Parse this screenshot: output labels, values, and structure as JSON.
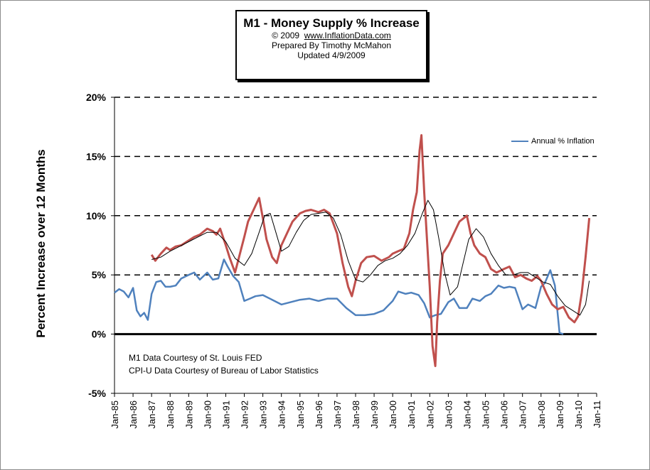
{
  "title_box": {
    "title": "M1 - Money Supply % Increase",
    "copyright": "© 2009",
    "site": "www.InflationData.com",
    "author": "Prepared By Timothy McMahon",
    "updated": "Updated 4/9/2009"
  },
  "credits": {
    "line1": "M1 Data Courtesy of  St. Louis FED",
    "line2": "CPI-U Data Courtesy of   Bureau of Labor Statistics"
  },
  "chart_data": {
    "type": "line",
    "ylabel": "Percent Increase over 12 Months",
    "ylim": [
      -5,
      20
    ],
    "yticks": [
      -5,
      0,
      5,
      10,
      15,
      20
    ],
    "ytick_labels": [
      "-5%",
      "0%",
      "5%",
      "10%",
      "15%",
      "20%"
    ],
    "xlim": [
      1985.0,
      2011.0
    ],
    "xtick_labels": [
      "Jan-85",
      "Jan-86",
      "Jan-87",
      "Jan-88",
      "Jan-89",
      "Jan-90",
      "Jan-91",
      "Jan-92",
      "Jan-93",
      "Jan-94",
      "Jan-95",
      "Jan-96",
      "Jan-97",
      "Jan-98",
      "Jan-99",
      "Jan-00",
      "Jan-01",
      "Jan-02",
      "Jan-03",
      "Jan-04",
      "Jan-05",
      "Jan-06",
      "Jan-07",
      "Jan-08",
      "Jan-09",
      "Jan-10",
      "Jan-11"
    ],
    "grid": "dashed horizontal",
    "legend": {
      "position": "top-right",
      "entries": [
        "Annual % Inflation"
      ]
    },
    "colors": {
      "inflation": "#4F81BD",
      "m1": "#C0504D",
      "trend": "#000000"
    },
    "series": [
      {
        "name": "Annual % Inflation",
        "x": [
          1985.0,
          1985.25,
          1985.5,
          1985.75,
          1986.0,
          1986.2,
          1986.4,
          1986.6,
          1986.8,
          1987.0,
          1987.25,
          1987.5,
          1987.75,
          1988.0,
          1988.3,
          1988.6,
          1989.0,
          1989.3,
          1989.6,
          1990.0,
          1990.3,
          1990.6,
          1990.9,
          1991.1,
          1991.4,
          1991.7,
          1992.0,
          1992.3,
          1992.6,
          1993.0,
          1993.5,
          1994.0,
          1994.5,
          1995.0,
          1995.5,
          1996.0,
          1996.5,
          1997.0,
          1997.5,
          1998.0,
          1998.5,
          1999.0,
          1999.5,
          2000.0,
          2000.3,
          2000.7,
          2001.0,
          2001.4,
          2001.7,
          2002.0,
          2002.3,
          2002.6,
          2003.0,
          2003.3,
          2003.6,
          2004.0,
          2004.3,
          2004.7,
          2005.0,
          2005.3,
          2005.7,
          2006.0,
          2006.3,
          2006.6,
          2007.0,
          2007.3,
          2007.7,
          2008.0,
          2008.2,
          2008.5,
          2008.75,
          2009.0,
          2009.2
        ],
        "values": [
          3.5,
          3.8,
          3.6,
          3.1,
          3.9,
          2.0,
          1.5,
          1.8,
          1.2,
          3.4,
          4.4,
          4.5,
          4.0,
          4.0,
          4.1,
          4.7,
          5.0,
          5.2,
          4.6,
          5.2,
          4.6,
          4.7,
          6.3,
          5.7,
          4.9,
          4.4,
          2.8,
          3.0,
          3.2,
          3.3,
          2.9,
          2.5,
          2.7,
          2.9,
          3.0,
          2.8,
          3.0,
          3.0,
          2.2,
          1.6,
          1.6,
          1.7,
          2.0,
          2.8,
          3.6,
          3.4,
          3.5,
          3.3,
          2.6,
          1.4,
          1.6,
          1.7,
          2.7,
          3.0,
          2.2,
          2.2,
          3.0,
          2.8,
          3.2,
          3.4,
          4.1,
          3.9,
          4.0,
          3.9,
          2.1,
          2.5,
          2.2,
          4.0,
          4.3,
          5.4,
          4.1,
          0.1,
          0.0
        ]
      },
      {
        "name": "",
        "x": [
          1987.0,
          1987.2,
          1987.5,
          1987.8,
          1988.0,
          1988.3,
          1988.6,
          1989.0,
          1989.3,
          1989.6,
          1990.0,
          1990.3,
          1990.5,
          1990.7,
          1991.0,
          1991.2,
          1991.5,
          1991.8,
          1992.0,
          1992.2,
          1992.5,
          1992.8,
          1993.0,
          1993.2,
          1993.5,
          1993.75,
          1994.0,
          1994.3,
          1994.6,
          1995.0,
          1995.3,
          1995.6,
          1996.0,
          1996.3,
          1996.6,
          1997.0,
          1997.3,
          1997.6,
          1997.8,
          1998.0,
          1998.3,
          1998.6,
          1999.0,
          1999.4,
          1999.8,
          2000.0,
          2000.3,
          2000.6,
          2000.9,
          2001.1,
          2001.3,
          2001.45,
          2001.55,
          2001.7,
          2001.85,
          2002.0,
          2002.15,
          2002.3,
          2002.4,
          2002.55,
          2002.7,
          2003.0,
          2003.3,
          2003.6,
          2004.0,
          2004.2,
          2004.4,
          2004.7,
          2005.0,
          2005.3,
          2005.6,
          2006.0,
          2006.3,
          2006.6,
          2006.9,
          2007.2,
          2007.5,
          2007.8,
          2008.0,
          2008.3,
          2008.6,
          2008.9,
          2009.2,
          2009.5,
          2009.8,
          2010.0,
          2010.2,
          2010.4,
          2010.6
        ],
        "values": [
          6.7,
          6.2,
          6.8,
          7.3,
          7.1,
          7.4,
          7.5,
          7.9,
          8.2,
          8.4,
          8.9,
          8.7,
          8.4,
          8.9,
          7.5,
          6.5,
          5.2,
          7.0,
          8.2,
          9.5,
          10.5,
          11.5,
          9.8,
          8.0,
          6.5,
          6.0,
          7.5,
          8.5,
          9.5,
          10.2,
          10.4,
          10.5,
          10.3,
          10.5,
          10.2,
          8.5,
          6.0,
          4.0,
          3.2,
          4.5,
          6.0,
          6.5,
          6.6,
          6.2,
          6.5,
          6.8,
          7.0,
          7.2,
          8.5,
          10.5,
          12.0,
          15.5,
          16.8,
          12.0,
          8.0,
          4.0,
          -1.0,
          -2.7,
          1.0,
          4.5,
          6.8,
          7.5,
          8.5,
          9.5,
          10.0,
          8.5,
          7.5,
          6.8,
          6.5,
          5.5,
          5.2,
          5.5,
          5.7,
          4.8,
          5.0,
          4.7,
          4.5,
          4.9,
          4.5,
          3.4,
          2.5,
          2.1,
          2.3,
          1.4,
          1.0,
          1.5,
          3.5,
          6.5,
          9.8
        ]
      },
      {
        "name": "",
        "x": [
          1987.0,
          1987.5,
          1988.0,
          1988.5,
          1989.0,
          1989.5,
          1990.0,
          1990.5,
          1991.0,
          1991.5,
          1992.0,
          1992.4,
          1992.8,
          1993.1,
          1993.4,
          1993.7,
          1994.0,
          1994.4,
          1994.8,
          1995.2,
          1995.6,
          1996.0,
          1996.4,
          1996.8,
          1997.2,
          1997.6,
          1998.0,
          1998.4,
          1998.8,
          1999.2,
          1999.6,
          2000.0,
          2000.4,
          2000.8,
          2001.2,
          2001.6,
          2001.9,
          2002.2,
          2002.5,
          2002.8,
          2003.1,
          2003.5,
          2003.8,
          2004.1,
          2004.5,
          2004.9,
          2005.3,
          2005.7,
          2006.1,
          2006.5,
          2006.9,
          2007.3,
          2007.7,
          2008.1,
          2008.5,
          2008.9,
          2009.3,
          2009.7,
          2010.1,
          2010.4,
          2010.6
        ],
        "values": [
          6.3,
          6.5,
          7.0,
          7.4,
          7.8,
          8.2,
          8.6,
          8.6,
          7.8,
          6.4,
          5.8,
          6.8,
          8.6,
          10.0,
          10.2,
          8.6,
          7.0,
          7.4,
          8.6,
          9.6,
          10.1,
          10.2,
          10.3,
          9.8,
          8.4,
          6.2,
          4.6,
          4.4,
          5.0,
          5.8,
          6.2,
          6.4,
          6.8,
          7.5,
          8.5,
          10.2,
          11.3,
          10.5,
          8.0,
          5.2,
          3.3,
          4.0,
          6.0,
          8.0,
          8.9,
          8.2,
          6.8,
          5.8,
          5.0,
          5.0,
          5.2,
          5.2,
          4.8,
          4.4,
          4.2,
          3.2,
          2.4,
          2.0,
          1.6,
          2.5,
          4.5
        ]
      }
    ]
  }
}
